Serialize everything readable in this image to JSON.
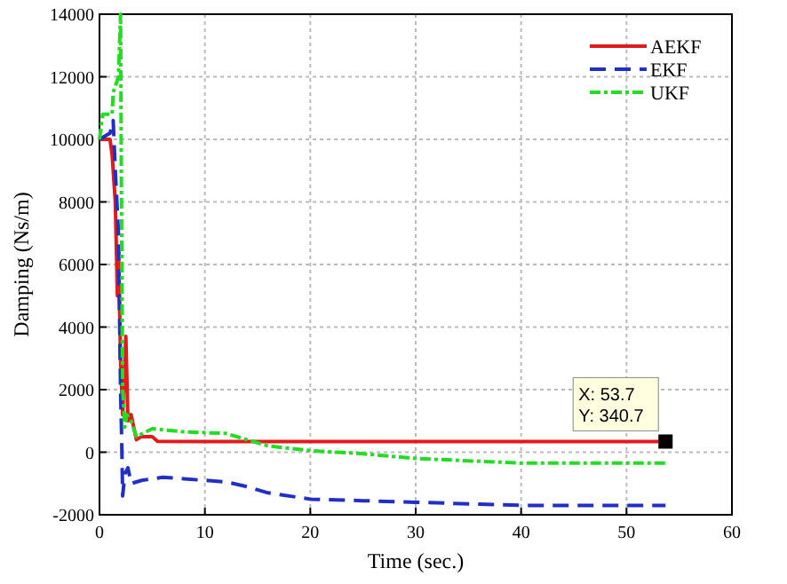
{
  "chart_data": {
    "type": "line",
    "xlabel": "Time (sec.)",
    "ylabel": "Damping (Ns/m)",
    "xlim": [
      0,
      60
    ],
    "ylim": [
      -2000,
      14000
    ],
    "xticks": [
      0,
      10,
      20,
      30,
      40,
      50,
      60
    ],
    "yticks": [
      -2000,
      0,
      2000,
      4000,
      6000,
      8000,
      10000,
      12000,
      14000
    ],
    "grid": true,
    "legend": "top right",
    "series": [
      {
        "name": "AEKF",
        "color": "#e31a1c",
        "line_style": "solid",
        "x": [
          0,
          1,
          1.2,
          1.5,
          1.7,
          1.8,
          2,
          2.2,
          2.5,
          2.7,
          3,
          3.5,
          4,
          5,
          5.5,
          10,
          20,
          53.7
        ],
        "values": [
          10000,
          10000,
          9500,
          8000,
          5000,
          6500,
          3000,
          1200,
          3700,
          1000,
          1200,
          400,
          500,
          500,
          350,
          340,
          340,
          340.7
        ]
      },
      {
        "name": "EKF",
        "color": "#1f2fc8",
        "line_style": "dashed",
        "x": [
          0,
          1,
          1.3,
          1.5,
          1.8,
          2,
          2.1,
          2.2,
          2.4,
          2.7,
          3,
          4,
          6,
          8,
          10,
          12,
          14,
          16,
          20,
          25,
          30,
          40,
          53.7
        ],
        "values": [
          10000,
          10200,
          10600,
          9000,
          7000,
          2000,
          500,
          -1400,
          -700,
          -500,
          -1000,
          -900,
          -800,
          -850,
          -900,
          -950,
          -1100,
          -1300,
          -1500,
          -1550,
          -1600,
          -1700,
          -1700
        ]
      },
      {
        "name": "UKF",
        "color": "#22dd22",
        "line_style": "dotted",
        "x": [
          0,
          0.3,
          1.2,
          1.3,
          1.8,
          2,
          2.1,
          2.2,
          2.4,
          2.6,
          3,
          3.5,
          5,
          8,
          12,
          14,
          16,
          20,
          25,
          30,
          40,
          53.7
        ],
        "values": [
          10000,
          10800,
          10800,
          11500,
          12000,
          14000,
          7000,
          2000,
          800,
          1200,
          1000,
          500,
          750,
          650,
          600,
          400,
          200,
          50,
          -50,
          -200,
          -350,
          -350
        ]
      }
    ],
    "annotations": [
      {
        "text": "X: 53.7\nY: 340.7",
        "x": 53.7,
        "y": 340.7
      }
    ]
  }
}
